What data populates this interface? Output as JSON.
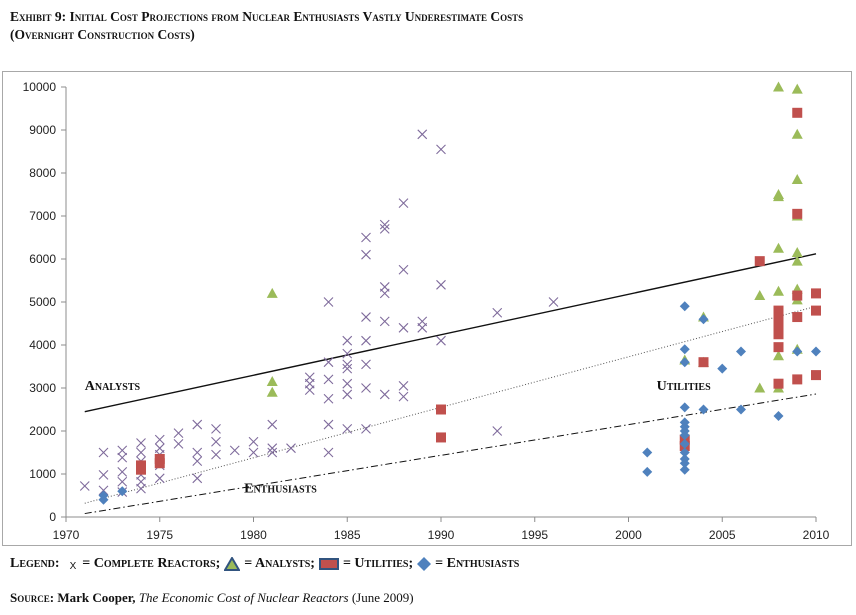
{
  "title": {
    "line1": "Exhibit 9: Initial Cost Projections from Nuclear Enthusiasts Vastly Underestimate Costs",
    "line2": "(Overnight Construction Costs)"
  },
  "legend": {
    "prefix": "Legend:",
    "x_symbol": "x",
    "complete": "= Complete Reactors;",
    "analysts": "= Analysts;",
    "utilities": "= Utilities;",
    "enthusiasts": "= Enthusiasts"
  },
  "source": {
    "label": "Source:",
    "author": "Mark Cooper,",
    "book": "The Economic Cost of Nuclear Reactors",
    "date": "(June 2009)"
  },
  "colors": {
    "analysts": "#9bbb59",
    "utilities": "#c0504d",
    "enthusiasts": "#4f81bd",
    "complete": "#7e6a9b"
  },
  "chart_data": {
    "type": "scatter",
    "title": "",
    "xlabel": "",
    "ylabel": "",
    "xlim": [
      1970,
      2010
    ],
    "ylim": [
      0,
      10000
    ],
    "x_ticks": [
      1970,
      1975,
      1980,
      1985,
      1990,
      1995,
      2000,
      2005,
      2010
    ],
    "y_ticks": [
      0,
      1000,
      2000,
      3000,
      4000,
      5000,
      6000,
      7000,
      8000,
      9000,
      10000
    ],
    "grid": false,
    "annotations": [
      {
        "text": "Analysts",
        "x": 1971,
        "y": 2950
      },
      {
        "text": "Utilities",
        "x": 2001.5,
        "y": 2950
      },
      {
        "text": "Enthusiasts",
        "x": 1979.5,
        "y": 570
      }
    ],
    "trendlines": [
      {
        "name": "Analysts",
        "style": "solid",
        "x": [
          1971,
          2010
        ],
        "y": [
          2450,
          6120
        ]
      },
      {
        "name": "Utilities",
        "style": "dotted",
        "x": [
          1971,
          2010
        ],
        "y": [
          320,
          4900
        ]
      },
      {
        "name": "Enthusiasts",
        "style": "dashdot",
        "x": [
          1971,
          2010
        ],
        "y": [
          80,
          2860
        ]
      }
    ],
    "series": [
      {
        "name": "Complete Reactors",
        "marker": "x",
        "points": [
          [
            1971,
            720
          ],
          [
            1972,
            1500
          ],
          [
            1972,
            980
          ],
          [
            1972,
            620
          ],
          [
            1973,
            1550
          ],
          [
            1973,
            1380
          ],
          [
            1973,
            1050
          ],
          [
            1973,
            820
          ],
          [
            1973,
            580
          ],
          [
            1974,
            1720
          ],
          [
            1974,
            1500
          ],
          [
            1974,
            1300
          ],
          [
            1974,
            980
          ],
          [
            1974,
            820
          ],
          [
            1974,
            660
          ],
          [
            1975,
            1800
          ],
          [
            1975,
            1600
          ],
          [
            1975,
            1450
          ],
          [
            1975,
            1200
          ],
          [
            1975,
            900
          ],
          [
            1976,
            1950
          ],
          [
            1976,
            1700
          ],
          [
            1977,
            2150
          ],
          [
            1977,
            1500
          ],
          [
            1977,
            1300
          ],
          [
            1977,
            900
          ],
          [
            1978,
            2050
          ],
          [
            1978,
            1750
          ],
          [
            1978,
            1450
          ],
          [
            1979,
            1550
          ],
          [
            1980,
            1750
          ],
          [
            1980,
            1500
          ],
          [
            1981,
            2150
          ],
          [
            1981,
            1600
          ],
          [
            1981,
            1500
          ],
          [
            1982,
            1600
          ],
          [
            1983,
            3250
          ],
          [
            1983,
            3100
          ],
          [
            1983,
            2950
          ],
          [
            1984,
            5000
          ],
          [
            1984,
            3600
          ],
          [
            1984,
            3200
          ],
          [
            1984,
            2750
          ],
          [
            1984,
            2150
          ],
          [
            1984,
            1500
          ],
          [
            1985,
            4100
          ],
          [
            1985,
            3800
          ],
          [
            1985,
            3550
          ],
          [
            1985,
            3450
          ],
          [
            1985,
            3100
          ],
          [
            1985,
            2850
          ],
          [
            1985,
            2050
          ],
          [
            1986,
            6500
          ],
          [
            1986,
            6100
          ],
          [
            1986,
            4650
          ],
          [
            1986,
            4100
          ],
          [
            1986,
            3550
          ],
          [
            1986,
            3000
          ],
          [
            1986,
            2050
          ],
          [
            1987,
            6800
          ],
          [
            1987,
            6700
          ],
          [
            1987,
            5350
          ],
          [
            1987,
            5200
          ],
          [
            1987,
            4550
          ],
          [
            1987,
            2850
          ],
          [
            1988,
            7300
          ],
          [
            1988,
            5750
          ],
          [
            1988,
            4400
          ],
          [
            1988,
            3050
          ],
          [
            1988,
            2800
          ],
          [
            1989,
            8900
          ],
          [
            1989,
            4550
          ],
          [
            1989,
            4400
          ],
          [
            1990,
            8550
          ],
          [
            1990,
            5400
          ],
          [
            1990,
            4100
          ],
          [
            1993,
            4750
          ],
          [
            1993,
            2000
          ],
          [
            1996,
            5000
          ]
        ]
      },
      {
        "name": "Analysts",
        "marker": "triangle",
        "points": [
          [
            1981,
            5200
          ],
          [
            1981,
            3150
          ],
          [
            1981,
            2900
          ],
          [
            2003,
            3650
          ],
          [
            2004,
            4650
          ],
          [
            2004,
            3600
          ],
          [
            2007,
            5150
          ],
          [
            2007,
            3000
          ],
          [
            2008,
            10000
          ],
          [
            2008,
            7500
          ],
          [
            2008,
            7450
          ],
          [
            2008,
            6250
          ],
          [
            2008,
            5250
          ],
          [
            2008,
            3750
          ],
          [
            2008,
            3000
          ],
          [
            2009,
            9950
          ],
          [
            2009,
            8900
          ],
          [
            2009,
            7850
          ],
          [
            2009,
            7000
          ],
          [
            2009,
            6150
          ],
          [
            2009,
            5950
          ],
          [
            2009,
            5300
          ],
          [
            2009,
            5050
          ],
          [
            2009,
            3900
          ]
        ]
      },
      {
        "name": "Utilities",
        "marker": "square",
        "points": [
          [
            1974,
            1200
          ],
          [
            1974,
            1100
          ],
          [
            1975,
            1350
          ],
          [
            1975,
            1250
          ],
          [
            1990,
            2500
          ],
          [
            1990,
            1850
          ],
          [
            2003,
            1800
          ],
          [
            2003,
            1650
          ],
          [
            2004,
            3600
          ],
          [
            2007,
            5950
          ],
          [
            2008,
            4800
          ],
          [
            2008,
            4650
          ],
          [
            2008,
            4450
          ],
          [
            2008,
            4250
          ],
          [
            2008,
            3950
          ],
          [
            2008,
            3100
          ],
          [
            2009,
            9400
          ],
          [
            2009,
            7050
          ],
          [
            2009,
            5150
          ],
          [
            2009,
            4650
          ],
          [
            2009,
            3200
          ],
          [
            2010,
            5200
          ],
          [
            2010,
            4800
          ],
          [
            2010,
            3300
          ]
        ]
      },
      {
        "name": "Enthusiasts",
        "marker": "diamond",
        "points": [
          [
            1972,
            500
          ],
          [
            1972,
            400
          ],
          [
            1973,
            600
          ],
          [
            2001,
            1500
          ],
          [
            2001,
            1050
          ],
          [
            2003,
            4900
          ],
          [
            2003,
            3900
          ],
          [
            2003,
            3600
          ],
          [
            2003,
            2550
          ],
          [
            2003,
            2200
          ],
          [
            2003,
            2100
          ],
          [
            2003,
            2000
          ],
          [
            2003,
            1900
          ],
          [
            2003,
            1700
          ],
          [
            2003,
            1500
          ],
          [
            2003,
            1350
          ],
          [
            2003,
            1250
          ],
          [
            2003,
            1100
          ],
          [
            2004,
            4600
          ],
          [
            2004,
            2500
          ],
          [
            2005,
            3450
          ],
          [
            2006,
            3850
          ],
          [
            2006,
            2500
          ],
          [
            2008,
            2350
          ],
          [
            2009,
            3850
          ],
          [
            2010,
            3850
          ]
        ]
      }
    ]
  }
}
